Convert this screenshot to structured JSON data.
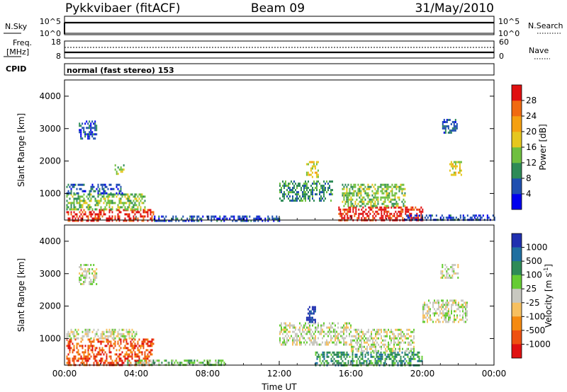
{
  "header": {
    "station": "Pykkvibaer (fitACF)",
    "beam": "Beam 09",
    "date": "31/May/2010"
  },
  "strips": {
    "nsky_label": "N.Sky",
    "nsky_ticks": [
      "10^5",
      "10^0"
    ],
    "nsearch_label": "N.Search",
    "nsearch_ticks": [
      "10^5",
      "10^0"
    ],
    "freq_label_1": "Freq.",
    "freq_label_2": "[MHz]",
    "freq_ticks": [
      "18",
      "8"
    ],
    "nave_label": "Nave",
    "nave_ticks": [
      "60",
      "0"
    ],
    "cpid_label": "CPID",
    "cpid_text": "normal (fast stereo) 153"
  },
  "chart_data": [
    {
      "type": "heatmap",
      "name": "power",
      "ylabel": "Slant Range [km]",
      "xlabel": "",
      "x_ticks": [
        "00:00",
        "04:00",
        "08:00",
        "12:00",
        "16:00",
        "20:00",
        "00:00"
      ],
      "y_ticks": [
        1000,
        2000,
        3000,
        4000
      ],
      "ylim": [
        180,
        4500
      ],
      "colorbar": {
        "label": "Power [dB]",
        "ticks": [
          "4",
          "8",
          "12",
          "16",
          "20",
          "24",
          "28"
        ],
        "colors": [
          "#0000ee",
          "#1f4fb0",
          "#2e8b57",
          "#6fbf3f",
          "#e6c71e",
          "#f5a010",
          "#f06a10",
          "#e01010"
        ]
      },
      "regions": [
        {
          "t": [
            0.1,
            5.0
          ],
          "r": [
            180,
            520
          ],
          "level": 7
        },
        {
          "t": [
            0.1,
            4.5
          ],
          "r": [
            520,
            1000
          ],
          "level": 3
        },
        {
          "t": [
            0.1,
            3.2
          ],
          "r": [
            1000,
            1300
          ],
          "level": 1
        },
        {
          "t": [
            0.8,
            1.8
          ],
          "r": [
            2700,
            3250
          ],
          "level": 1
        },
        {
          "t": [
            2.8,
            3.3
          ],
          "r": [
            1600,
            1900
          ],
          "level": 3
        },
        {
          "t": [
            5.0,
            12.0
          ],
          "r": [
            180,
            320
          ],
          "level": 1
        },
        {
          "t": [
            12.0,
            15.0
          ],
          "r": [
            800,
            1400
          ],
          "level": 2
        },
        {
          "t": [
            13.5,
            14.2
          ],
          "r": [
            1500,
            2000
          ],
          "level": 4
        },
        {
          "t": [
            15.3,
            20.0
          ],
          "r": [
            180,
            600
          ],
          "level": 7
        },
        {
          "t": [
            15.5,
            19.0
          ],
          "r": [
            600,
            1300
          ],
          "level": 3
        },
        {
          "t": [
            19.0,
            24.0
          ],
          "r": [
            180,
            350
          ],
          "level": 1
        },
        {
          "t": [
            21.1,
            21.9
          ],
          "r": [
            2900,
            3300
          ],
          "level": 1
        },
        {
          "t": [
            21.5,
            22.2
          ],
          "r": [
            1600,
            2000
          ],
          "level": 4
        }
      ]
    },
    {
      "type": "heatmap",
      "name": "velocity",
      "ylabel": "Slant Range [km]",
      "xlabel": "Time UT",
      "x_ticks": [
        "00:00",
        "04:00",
        "08:00",
        "12:00",
        "16:00",
        "20:00",
        "00:00"
      ],
      "y_ticks": [
        1000,
        2000,
        3000,
        4000
      ],
      "ylim": [
        180,
        4500
      ],
      "colorbar": {
        "label": "Velocity [m s^-1]",
        "ticks": [
          "1000",
          "500",
          "100",
          "25",
          "-25",
          "-100",
          "-500",
          "-1000"
        ],
        "colors": [
          "#2030b0",
          "#1f6fa0",
          "#2e8b57",
          "#66cc33",
          "#c8c8c0",
          "#f7c060",
          "#f58a10",
          "#ee5010",
          "#e01010"
        ]
      },
      "regions": [
        {
          "t": [
            0.1,
            5.0
          ],
          "r": [
            180,
            1000
          ],
          "level": 7
        },
        {
          "t": [
            0.1,
            4.0
          ],
          "r": [
            1000,
            1300
          ],
          "level": 4
        },
        {
          "t": [
            0.8,
            1.8
          ],
          "r": [
            2700,
            3300
          ],
          "level": 4
        },
        {
          "t": [
            3.5,
            9.0
          ],
          "r": [
            180,
            350
          ],
          "level": 3
        },
        {
          "t": [
            12.0,
            16.0
          ],
          "r": [
            800,
            1500
          ],
          "level": 4
        },
        {
          "t": [
            13.5,
            14.0
          ],
          "r": [
            1500,
            2000
          ],
          "level": 0
        },
        {
          "t": [
            14.0,
            20.0
          ],
          "r": [
            180,
            600
          ],
          "level": 2
        },
        {
          "t": [
            16.0,
            19.5
          ],
          "r": [
            600,
            1300
          ],
          "level": 4
        },
        {
          "t": [
            20.0,
            22.5
          ],
          "r": [
            1500,
            2200
          ],
          "level": 4
        },
        {
          "t": [
            21.0,
            22.0
          ],
          "r": [
            2900,
            3300
          ],
          "level": 4
        }
      ]
    }
  ]
}
